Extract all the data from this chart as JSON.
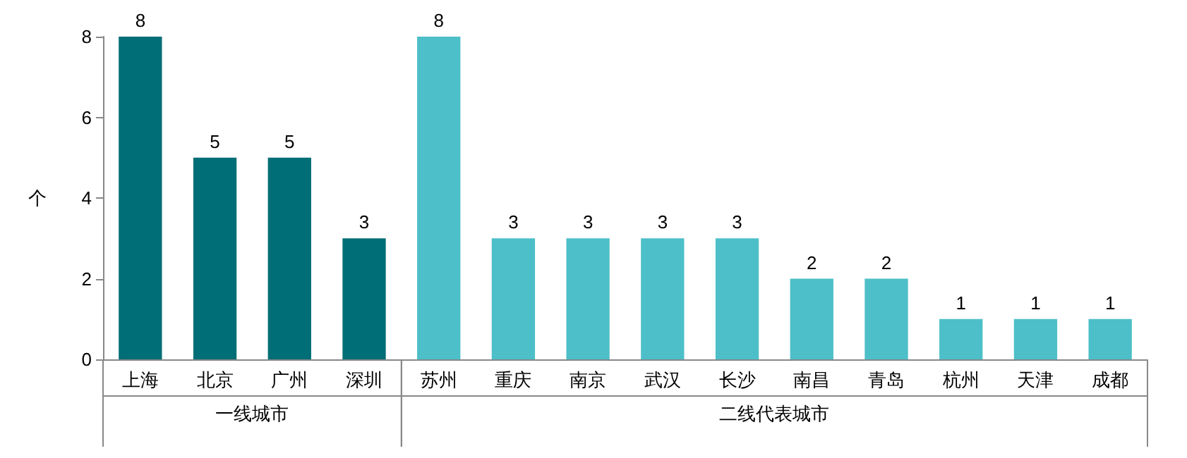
{
  "chart_data": {
    "type": "bar",
    "ylabel": "个",
    "categories": [
      "上海",
      "北京",
      "广州",
      "深圳",
      "苏州",
      "重庆",
      "南京",
      "武汉",
      "长沙",
      "南昌",
      "青岛",
      "杭州",
      "天津",
      "成都"
    ],
    "series": [
      {
        "name": "一线城市",
        "color": "#006e76",
        "values": [
          8,
          5,
          5,
          3,
          null,
          null,
          null,
          null,
          null,
          null,
          null,
          null,
          null,
          null
        ]
      },
      {
        "name": "二线代表城市",
        "color": "#4dbfc8",
        "values": [
          null,
          null,
          null,
          null,
          8,
          3,
          3,
          3,
          3,
          2,
          2,
          1,
          1,
          1
        ]
      }
    ],
    "ylim": [
      0,
      8
    ],
    "yticks": [
      0,
      2,
      4,
      6,
      8
    ],
    "data_labels": true,
    "grid": false,
    "legend": false
  }
}
